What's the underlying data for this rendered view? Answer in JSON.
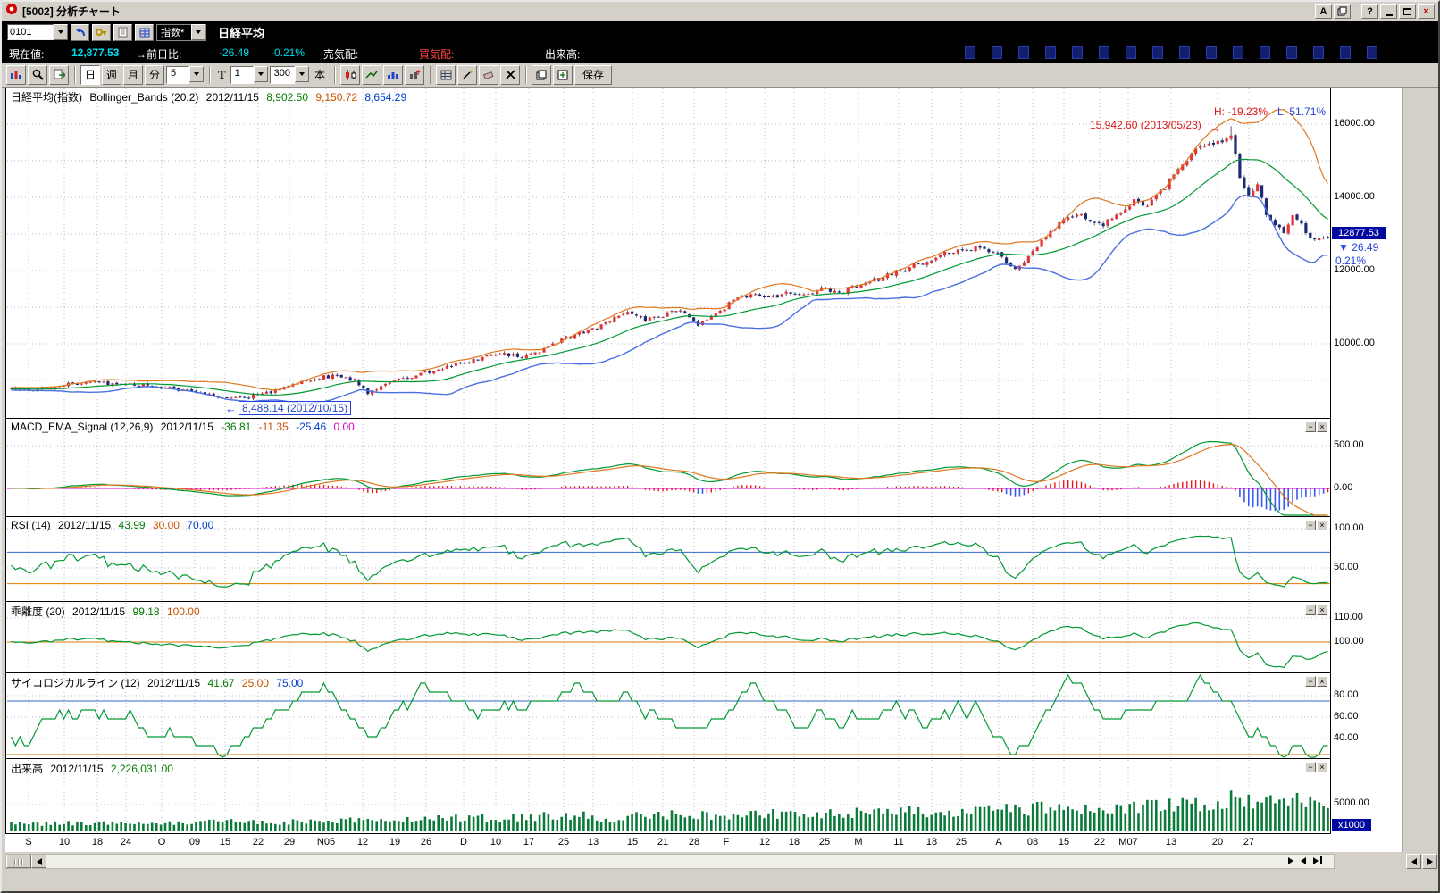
{
  "window": {
    "title": "[5002] 分析チャート",
    "font_button": "A",
    "help_button": "?"
  },
  "cmdbar": {
    "code_value": "0101",
    "index_select": "指数*",
    "symbol_name": "日経平均"
  },
  "infobar": {
    "current_label": "現在値:",
    "current_value": "12,877.53",
    "change_label": "→前日比:",
    "change_value": "-26.49",
    "change_pct": "-0.21%",
    "ask_label": "売気配:",
    "bid_label": "買気配:",
    "volume_label": "出来高:",
    "deco_cells": 16
  },
  "toolbar": {
    "day": "日",
    "week": "週",
    "month": "月",
    "minute": "分",
    "minute_value": "5",
    "tick_label": "T",
    "tick_value": "1",
    "bars_value": "300",
    "bars_unit": "本",
    "save": "保存"
  },
  "panels": {
    "main": {
      "name": "日経平均(指数)",
      "indicator": "Bollinger_Bands (20,2)",
      "date": "2012/11/15",
      "mid": "8,902.50",
      "upper": "9,150.72",
      "lower": "8,654.29"
    },
    "macd": {
      "indicator": "MACD_EMA_Signal (12,26,9)",
      "date": "2012/11/15",
      "macd": "-36.81",
      "signal": "-11.35",
      "osci": "-25.46",
      "zero": "0.00"
    },
    "rsi": {
      "indicator": "RSI (14)",
      "date": "2012/11/15",
      "value": "43.99",
      "low_ref": "30.00",
      "high_ref": "70.00"
    },
    "kairi": {
      "indicator": "乖離度 (20)",
      "date": "2012/11/15",
      "value": "99.18",
      "ref": "100.00"
    },
    "psych": {
      "indicator": "サイコロジカルライン (12)",
      "date": "2012/11/15",
      "value": "41.67",
      "low_ref": "25.00",
      "high_ref": "75.00"
    },
    "volume": {
      "indicator": "出来高",
      "date": "2012/11/15",
      "value": "2,226,031.00"
    }
  },
  "annotations": {
    "high_label": "15,942.60 (2013/05/23)",
    "high_pct": "H: -19.23%",
    "low_pct": "L: 51.71%",
    "low_label": "8,488.14 (2012/10/15)",
    "price_badge": "12877.53",
    "badge_change": "▼ 26.49",
    "badge_pct": "0.21%",
    "vol_unit": "x1000"
  },
  "yaxis": {
    "main": [
      "16000.00",
      "14000.00",
      "12000.00",
      "10000.00"
    ],
    "macd": [
      "500.00",
      "0.00"
    ],
    "rsi": [
      "100.00",
      "50.00"
    ],
    "kairi": [
      "110.00",
      "100.00"
    ],
    "psych": [
      "80.00",
      "60.00",
      "40.00"
    ],
    "volume": [
      "5000.00"
    ]
  },
  "chart_data": {
    "type": "candlestick",
    "symbol": "日経平均(指数)",
    "bars_shown": 300,
    "y_axis_range": [
      8000,
      17000
    ],
    "high": {
      "value": 15942.6,
      "date": "2013/05/23",
      "drawdown_pct": -19.23
    },
    "low": {
      "value": 8488.14,
      "date": "2012/10/15",
      "gain_pct": 51.71
    },
    "last": {
      "close": 12877.53,
      "change": -26.49,
      "change_pct": -0.21,
      "cursor_date": "2012/11/15"
    },
    "indicators": [
      {
        "name": "Bollinger_Bands",
        "params": [
          20,
          2
        ],
        "values_at_cursor": [
          8902.5,
          9150.72,
          8654.29
        ]
      },
      {
        "name": "MACD_EMA_Signal",
        "params": [
          12,
          26,
          9
        ],
        "values_at_cursor": [
          -36.81,
          -11.35,
          -25.46,
          0.0
        ]
      },
      {
        "name": "RSI",
        "params": [
          14
        ],
        "values_at_cursor": [
          43.99
        ],
        "refs": [
          30,
          70
        ]
      },
      {
        "name": "乖離度",
        "params": [
          20
        ],
        "values_at_cursor": [
          99.18
        ],
        "refs": [
          100
        ]
      },
      {
        "name": "サイコロジカルライン",
        "params": [
          12
        ],
        "values_at_cursor": [
          41.67
        ],
        "refs": [
          25,
          75
        ]
      },
      {
        "name": "出来高",
        "values_at_cursor": [
          2226031.0
        ],
        "unit": "x1000"
      }
    ],
    "price_anchors": [
      [
        -34,
        8750
      ],
      [
        -20,
        8800
      ],
      [
        -10,
        8760
      ],
      [
        0,
        8800
      ],
      [
        6,
        8740
      ],
      [
        12,
        8870
      ],
      [
        18,
        8950
      ],
      [
        24,
        8910
      ],
      [
        30,
        8870
      ],
      [
        35,
        8800
      ],
      [
        40,
        8720
      ],
      [
        45,
        8610
      ],
      [
        50,
        8490
      ],
      [
        55,
        8580
      ],
      [
        60,
        8700
      ],
      [
        65,
        8930
      ],
      [
        70,
        9050
      ],
      [
        74,
        9160
      ],
      [
        78,
        9020
      ],
      [
        81,
        8660
      ],
      [
        84,
        8830
      ],
      [
        88,
        9000
      ],
      [
        92,
        9150
      ],
      [
        96,
        9260
      ],
      [
        100,
        9400
      ],
      [
        104,
        9520
      ],
      [
        108,
        9650
      ],
      [
        112,
        9740
      ],
      [
        116,
        9610
      ],
      [
        120,
        9820
      ],
      [
        124,
        10080
      ],
      [
        128,
        10230
      ],
      [
        132,
        10400
      ],
      [
        136,
        10600
      ],
      [
        140,
        10900
      ],
      [
        144,
        10660
      ],
      [
        148,
        10800
      ],
      [
        152,
        10930
      ],
      [
        156,
        10500
      ],
      [
        160,
        10830
      ],
      [
        164,
        11190
      ],
      [
        168,
        11360
      ],
      [
        172,
        11250
      ],
      [
        176,
        11410
      ],
      [
        180,
        11300
      ],
      [
        184,
        11550
      ],
      [
        188,
        11400
      ],
      [
        192,
        11560
      ],
      [
        196,
        11750
      ],
      [
        200,
        11900
      ],
      [
        204,
        12100
      ],
      [
        208,
        12260
      ],
      [
        212,
        12450
      ],
      [
        216,
        12560
      ],
      [
        220,
        12640
      ],
      [
        224,
        12450
      ],
      [
        228,
        12010
      ],
      [
        231,
        12400
      ],
      [
        234,
        12830
      ],
      [
        237,
        13200
      ],
      [
        240,
        13450
      ],
      [
        243,
        13550
      ],
      [
        246,
        13280
      ],
      [
        249,
        13320
      ],
      [
        252,
        13570
      ],
      [
        255,
        13930
      ],
      [
        258,
        13800
      ],
      [
        261,
        14180
      ],
      [
        264,
        14610
      ],
      [
        267,
        15100
      ],
      [
        270,
        15360
      ],
      [
        273,
        15450
      ],
      [
        276,
        15630
      ],
      [
        277,
        15740
      ],
      [
        279,
        14480
      ],
      [
        281,
        14140
      ],
      [
        283,
        14310
      ],
      [
        285,
        13590
      ],
      [
        287,
        13260
      ],
      [
        289,
        13010
      ],
      [
        291,
        13510
      ],
      [
        293,
        13290
      ],
      [
        295,
        12900
      ],
      [
        297,
        12850
      ],
      [
        299,
        12877
      ]
    ],
    "volume_anchors": [
      [
        -34,
        1300
      ],
      [
        0,
        1400
      ],
      [
        20,
        1500
      ],
      [
        40,
        1450
      ],
      [
        50,
        1900
      ],
      [
        60,
        1550
      ],
      [
        80,
        2250
      ],
      [
        90,
        2050
      ],
      [
        100,
        2650
      ],
      [
        110,
        2400
      ],
      [
        120,
        2650
      ],
      [
        130,
        2950
      ],
      [
        134,
        1600
      ],
      [
        140,
        2850
      ],
      [
        150,
        3050
      ],
      [
        160,
        2750
      ],
      [
        170,
        3250
      ],
      [
        180,
        3050
      ],
      [
        190,
        3350
      ],
      [
        200,
        3450
      ],
      [
        210,
        3650
      ],
      [
        220,
        3550
      ],
      [
        228,
        3900
      ],
      [
        237,
        4300
      ],
      [
        245,
        3950
      ],
      [
        255,
        4350
      ],
      [
        264,
        4650
      ],
      [
        270,
        4850
      ],
      [
        276,
        5300
      ],
      [
        279,
        6500
      ],
      [
        283,
        5600
      ],
      [
        287,
        5100
      ],
      [
        291,
        5900
      ],
      [
        295,
        4900
      ],
      [
        299,
        4300
      ]
    ],
    "xaxis_labels": [
      [
        "S",
        30
      ],
      [
        "10",
        70
      ],
      [
        "18",
        107
      ],
      [
        "24",
        139
      ],
      [
        "O",
        179
      ],
      [
        "09",
        216
      ],
      [
        "15",
        250
      ],
      [
        "22",
        287
      ],
      [
        "29",
        322
      ],
      [
        "N05",
        363
      ],
      [
        "12",
        404
      ],
      [
        "19",
        440
      ],
      [
        "26",
        475
      ],
      [
        "D",
        517
      ],
      [
        "10",
        553
      ],
      [
        "17",
        590
      ],
      [
        "25",
        629
      ],
      [
        "13",
        662
      ],
      [
        "15",
        706
      ],
      [
        "21",
        740
      ],
      [
        "28",
        775
      ],
      [
        "F",
        811
      ],
      [
        "12",
        854
      ],
      [
        "18",
        887
      ],
      [
        "25",
        921
      ],
      [
        "M",
        959
      ],
      [
        "11",
        1004
      ],
      [
        "18",
        1041
      ],
      [
        "25",
        1074
      ],
      [
        "A",
        1116
      ],
      [
        "08",
        1154
      ],
      [
        "15",
        1189
      ],
      [
        "22",
        1229
      ],
      [
        "M07",
        1261
      ],
      [
        "13",
        1309
      ],
      [
        "20",
        1361
      ],
      [
        "27",
        1396
      ]
    ]
  }
}
